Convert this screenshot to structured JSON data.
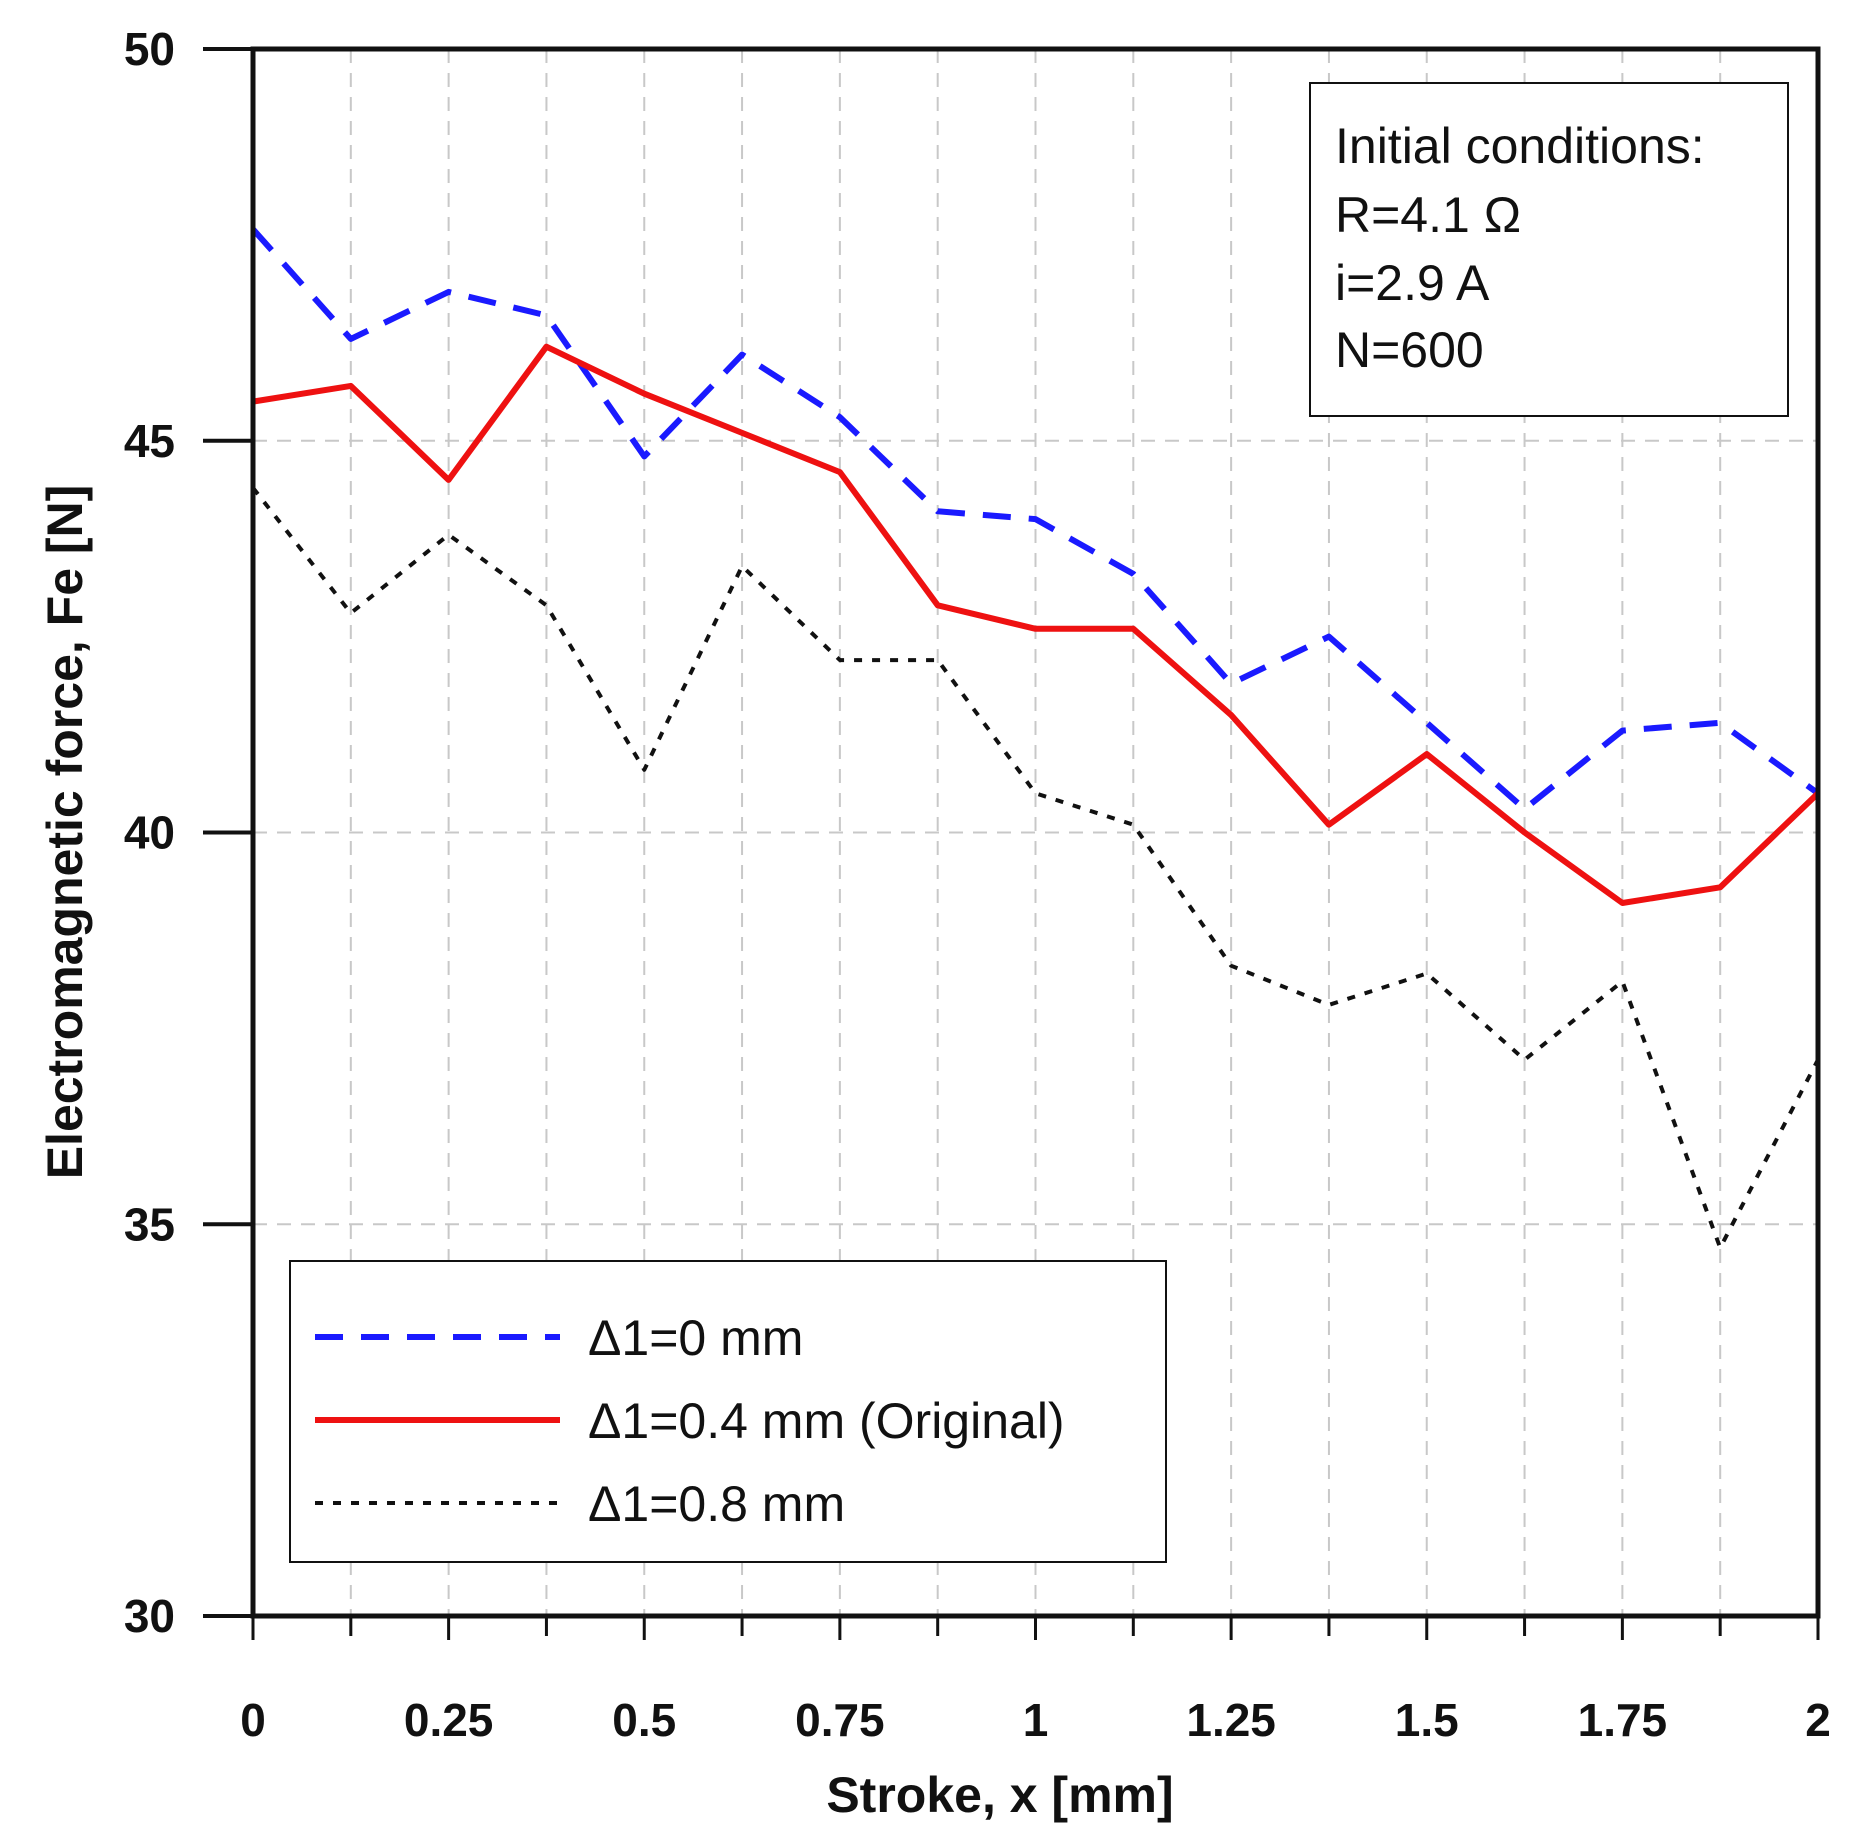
{
  "chart_data": {
    "type": "line",
    "title": "",
    "xlabel": "Stroke, x [mm]",
    "ylabel": "Electromagnetic force, Fe [N]",
    "xlim": [
      0,
      2
    ],
    "ylim": [
      30,
      50
    ],
    "grid": true,
    "x": [
      0,
      0.125,
      0.25,
      0.375,
      0.5,
      0.625,
      0.75,
      0.875,
      1,
      1.125,
      1.25,
      1.375,
      1.5,
      1.625,
      1.75,
      1.875,
      2
    ],
    "x_ticks": [
      "0",
      "0.25",
      "0.5",
      "0.75",
      "1",
      "1.25",
      "1.5",
      "1.75",
      "2"
    ],
    "y_ticks": [
      "30",
      "35",
      "40",
      "45",
      "50"
    ],
    "series": [
      {
        "name": "Δ1=0 mm",
        "style": "dashed",
        "color": "#1a1aff",
        "values": [
          47.7,
          46.3,
          46.9,
          46.6,
          44.8,
          46.1,
          45.3,
          44.1,
          44.0,
          43.3,
          41.9,
          42.5,
          41.4,
          40.3,
          41.3,
          41.4,
          40.5
        ]
      },
      {
        "name": "Δ1=0.4 mm (Original)",
        "style": "solid",
        "color": "#ee1111",
        "values": [
          45.5,
          45.7,
          44.5,
          46.2,
          45.6,
          45.1,
          44.6,
          42.9,
          42.6,
          42.6,
          41.5,
          40.1,
          41.0,
          40.0,
          39.1,
          39.3,
          40.5
        ]
      },
      {
        "name": "Δ1=0.8 mm",
        "style": "dotted",
        "color": "#111111",
        "values": [
          44.4,
          42.8,
          43.8,
          42.9,
          40.8,
          43.4,
          42.2,
          42.2,
          40.5,
          40.1,
          38.3,
          37.8,
          38.2,
          37.1,
          38.1,
          34.7,
          37.1
        ]
      }
    ],
    "legend_position": "bottom-left",
    "annotation": {
      "lines": [
        "Initial conditions:",
        "R=4.1 Ω",
        "i=2.9 A",
        "N=600"
      ],
      "position": "top-right"
    }
  }
}
